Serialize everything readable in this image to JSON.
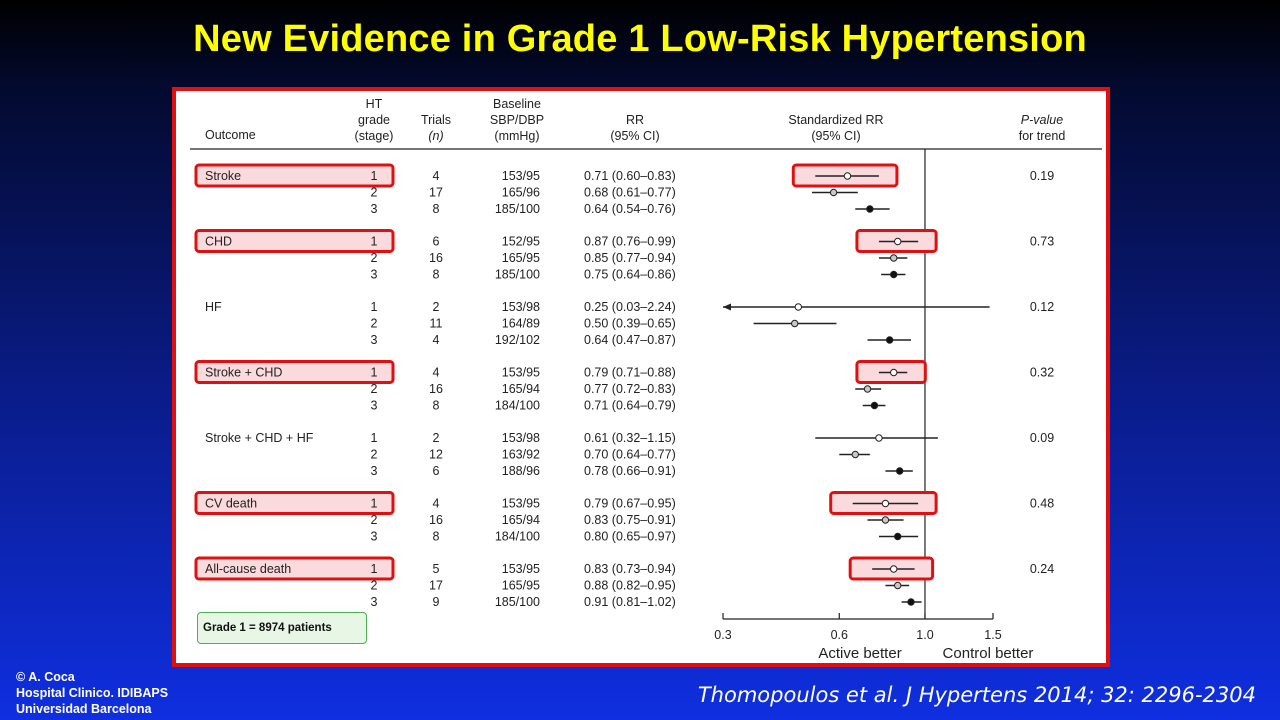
{
  "slide_title": "New Evidence in Grade 1 Low-Risk Hypertension",
  "credit": [
    "© A. Coca",
    "Hospital Clinico. IDIBAPS",
    "Universidad Barcelona"
  ],
  "citation": "Thomopoulos et al. J Hypertens 2014; 32: 2296-2304",
  "note": "Grade 1 = 8974 patients",
  "colors": {
    "title": "#ffff00",
    "highlight_border": "#e01010",
    "highlight_fill": "#fadadd",
    "note_fill": "#e8f6e6"
  },
  "chart_data": {
    "type": "forest",
    "columns": {
      "outcome": "Outcome",
      "grade": [
        "HT",
        "grade",
        "(stage)"
      ],
      "trials": "Trials",
      "trials_n": "(n)",
      "baseline": [
        "Baseline",
        "SBP/DBP",
        "(mmHg)"
      ],
      "rr": [
        "RR",
        "(95% CI)"
      ],
      "std_rr": [
        "Standardized RR",
        "(95% CI)"
      ],
      "p_trend": "P-value",
      "p_trend_suffix": "for trend"
    },
    "x_axis": {
      "scale": "log",
      "ticks": [
        0.3,
        0.6,
        1.0,
        1.5
      ],
      "tick_labels": [
        "0.3",
        "0.6",
        "1.0",
        "1.5"
      ],
      "range": [
        0.3,
        1.5
      ],
      "reference_line": 1.0
    },
    "axis_labels": {
      "left": "Active better",
      "right": "Control better"
    },
    "groups": [
      {
        "outcome": "Stroke",
        "highlighted": true,
        "p_trend": "0.19",
        "rows": [
          {
            "grade": "1",
            "trials": "4",
            "baseline": "153/95",
            "rr": 0.71,
            "lo": 0.6,
            "hi": 0.83,
            "rr_text": "0.71 (0.60–0.83)",
            "std": 0.63,
            "std_lo": 0.52,
            "std_hi": 0.76
          },
          {
            "grade": "2",
            "trials": "17",
            "baseline": "165/96",
            "rr": 0.68,
            "lo": 0.61,
            "hi": 0.77,
            "rr_text": "0.68 (0.61–0.77)",
            "std": 0.58,
            "std_lo": 0.51,
            "std_hi": 0.67
          },
          {
            "grade": "3",
            "trials": "8",
            "baseline": "185/100",
            "rr": 0.64,
            "lo": 0.54,
            "hi": 0.76,
            "rr_text": "0.64 (0.54–0.76)",
            "std": 0.72,
            "std_lo": 0.66,
            "std_hi": 0.81
          }
        ]
      },
      {
        "outcome": "CHD",
        "highlighted": true,
        "p_trend": "0.73",
        "rows": [
          {
            "grade": "1",
            "trials": "6",
            "baseline": "152/95",
            "rr": 0.87,
            "lo": 0.76,
            "hi": 0.99,
            "rr_text": "0.87 (0.76–0.99)",
            "std": 0.85,
            "std_lo": 0.76,
            "std_hi": 0.96
          },
          {
            "grade": "2",
            "trials": "16",
            "baseline": "165/95",
            "rr": 0.85,
            "lo": 0.77,
            "hi": 0.94,
            "rr_text": "0.85 (0.77–0.94)",
            "std": 0.83,
            "std_lo": 0.76,
            "std_hi": 0.9
          },
          {
            "grade": "3",
            "trials": "8",
            "baseline": "185/100",
            "rr": 0.75,
            "lo": 0.64,
            "hi": 0.86,
            "rr_text": "0.75 (0.64–0.86)",
            "std": 0.83,
            "std_lo": 0.77,
            "std_hi": 0.89
          }
        ]
      },
      {
        "outcome": "HF",
        "highlighted": false,
        "p_trend": "0.12",
        "rows": [
          {
            "grade": "1",
            "trials": "2",
            "baseline": "153/98",
            "rr": 0.25,
            "lo": 0.03,
            "hi": 2.24,
            "rr_text": "0.25 (0.03–2.24)",
            "std": 0.47,
            "std_lo": 0.28,
            "std_hi": 1.47,
            "arrow_left": true
          },
          {
            "grade": "2",
            "trials": "11",
            "baseline": "164/89",
            "rr": 0.5,
            "lo": 0.39,
            "hi": 0.65,
            "rr_text": "0.50 (0.39–0.65)",
            "std": 0.46,
            "std_lo": 0.36,
            "std_hi": 0.59
          },
          {
            "grade": "3",
            "trials": "4",
            "baseline": "192/102",
            "rr": 0.64,
            "lo": 0.47,
            "hi": 0.87,
            "rr_text": "0.64 (0.47–0.87)",
            "std": 0.81,
            "std_lo": 0.71,
            "std_hi": 0.92
          }
        ]
      },
      {
        "outcome": "Stroke + CHD",
        "highlighted": true,
        "p_trend": "0.32",
        "rows": [
          {
            "grade": "1",
            "trials": "4",
            "baseline": "153/95",
            "rr": 0.79,
            "lo": 0.71,
            "hi": 0.88,
            "rr_text": "0.79 (0.71–0.88)",
            "std": 0.83,
            "std_lo": 0.76,
            "std_hi": 0.9
          },
          {
            "grade": "2",
            "trials": "16",
            "baseline": "165/94",
            "rr": 0.77,
            "lo": 0.72,
            "hi": 0.83,
            "rr_text": "0.77 (0.72–0.83)",
            "std": 0.71,
            "std_lo": 0.66,
            "std_hi": 0.77
          },
          {
            "grade": "3",
            "trials": "8",
            "baseline": "184/100",
            "rr": 0.71,
            "lo": 0.64,
            "hi": 0.79,
            "rr_text": "0.71 (0.64–0.79)",
            "std": 0.74,
            "std_lo": 0.69,
            "std_hi": 0.79
          }
        ]
      },
      {
        "outcome": "Stroke + CHD + HF",
        "highlighted": false,
        "p_trend": "0.09",
        "rows": [
          {
            "grade": "1",
            "trials": "2",
            "baseline": "153/98",
            "rr": 0.61,
            "lo": 0.32,
            "hi": 1.15,
            "rr_text": "0.61 (0.32–1.15)",
            "std": 0.76,
            "std_lo": 0.52,
            "std_hi": 1.08
          },
          {
            "grade": "2",
            "trials": "12",
            "baseline": "163/92",
            "rr": 0.7,
            "lo": 0.64,
            "hi": 0.77,
            "rr_text": "0.70 (0.64–0.77)",
            "std": 0.66,
            "std_lo": 0.6,
            "std_hi": 0.72
          },
          {
            "grade": "3",
            "trials": "6",
            "baseline": "188/96",
            "rr": 0.78,
            "lo": 0.66,
            "hi": 0.91,
            "rr_text": "0.78 (0.66–0.91)",
            "std": 0.86,
            "std_lo": 0.79,
            "std_hi": 0.93
          }
        ]
      },
      {
        "outcome": "CV death",
        "highlighted": true,
        "p_trend": "0.48",
        "rows": [
          {
            "grade": "1",
            "trials": "4",
            "baseline": "153/95",
            "rr": 0.79,
            "lo": 0.67,
            "hi": 0.95,
            "rr_text": "0.79 (0.67–0.95)",
            "std": 0.79,
            "std_lo": 0.65,
            "std_hi": 0.96
          },
          {
            "grade": "2",
            "trials": "16",
            "baseline": "165/94",
            "rr": 0.83,
            "lo": 0.75,
            "hi": 0.91,
            "rr_text": "0.83 (0.75–0.91)",
            "std": 0.79,
            "std_lo": 0.71,
            "std_hi": 0.88
          },
          {
            "grade": "3",
            "trials": "8",
            "baseline": "184/100",
            "rr": 0.8,
            "lo": 0.65,
            "hi": 0.97,
            "rr_text": "0.80 (0.65–0.97)",
            "std": 0.85,
            "std_lo": 0.76,
            "std_hi": 0.96
          }
        ]
      },
      {
        "outcome": "All-cause death",
        "highlighted": true,
        "p_trend": "0.24",
        "rows": [
          {
            "grade": "1",
            "trials": "5",
            "baseline": "153/95",
            "rr": 0.83,
            "lo": 0.73,
            "hi": 0.94,
            "rr_text": "0.83 (0.73–0.94)",
            "std": 0.83,
            "std_lo": 0.73,
            "std_hi": 0.94
          },
          {
            "grade": "2",
            "trials": "17",
            "baseline": "165/95",
            "rr": 0.88,
            "lo": 0.82,
            "hi": 0.95,
            "rr_text": "0.88 (0.82–0.95)",
            "std": 0.85,
            "std_lo": 0.79,
            "std_hi": 0.91
          },
          {
            "grade": "3",
            "trials": "9",
            "baseline": "185/100",
            "rr": 0.91,
            "lo": 0.81,
            "hi": 1.02,
            "rr_text": "0.91 (0.81–1.02)",
            "std": 0.92,
            "std_lo": 0.87,
            "std_hi": 0.98
          }
        ]
      }
    ]
  }
}
